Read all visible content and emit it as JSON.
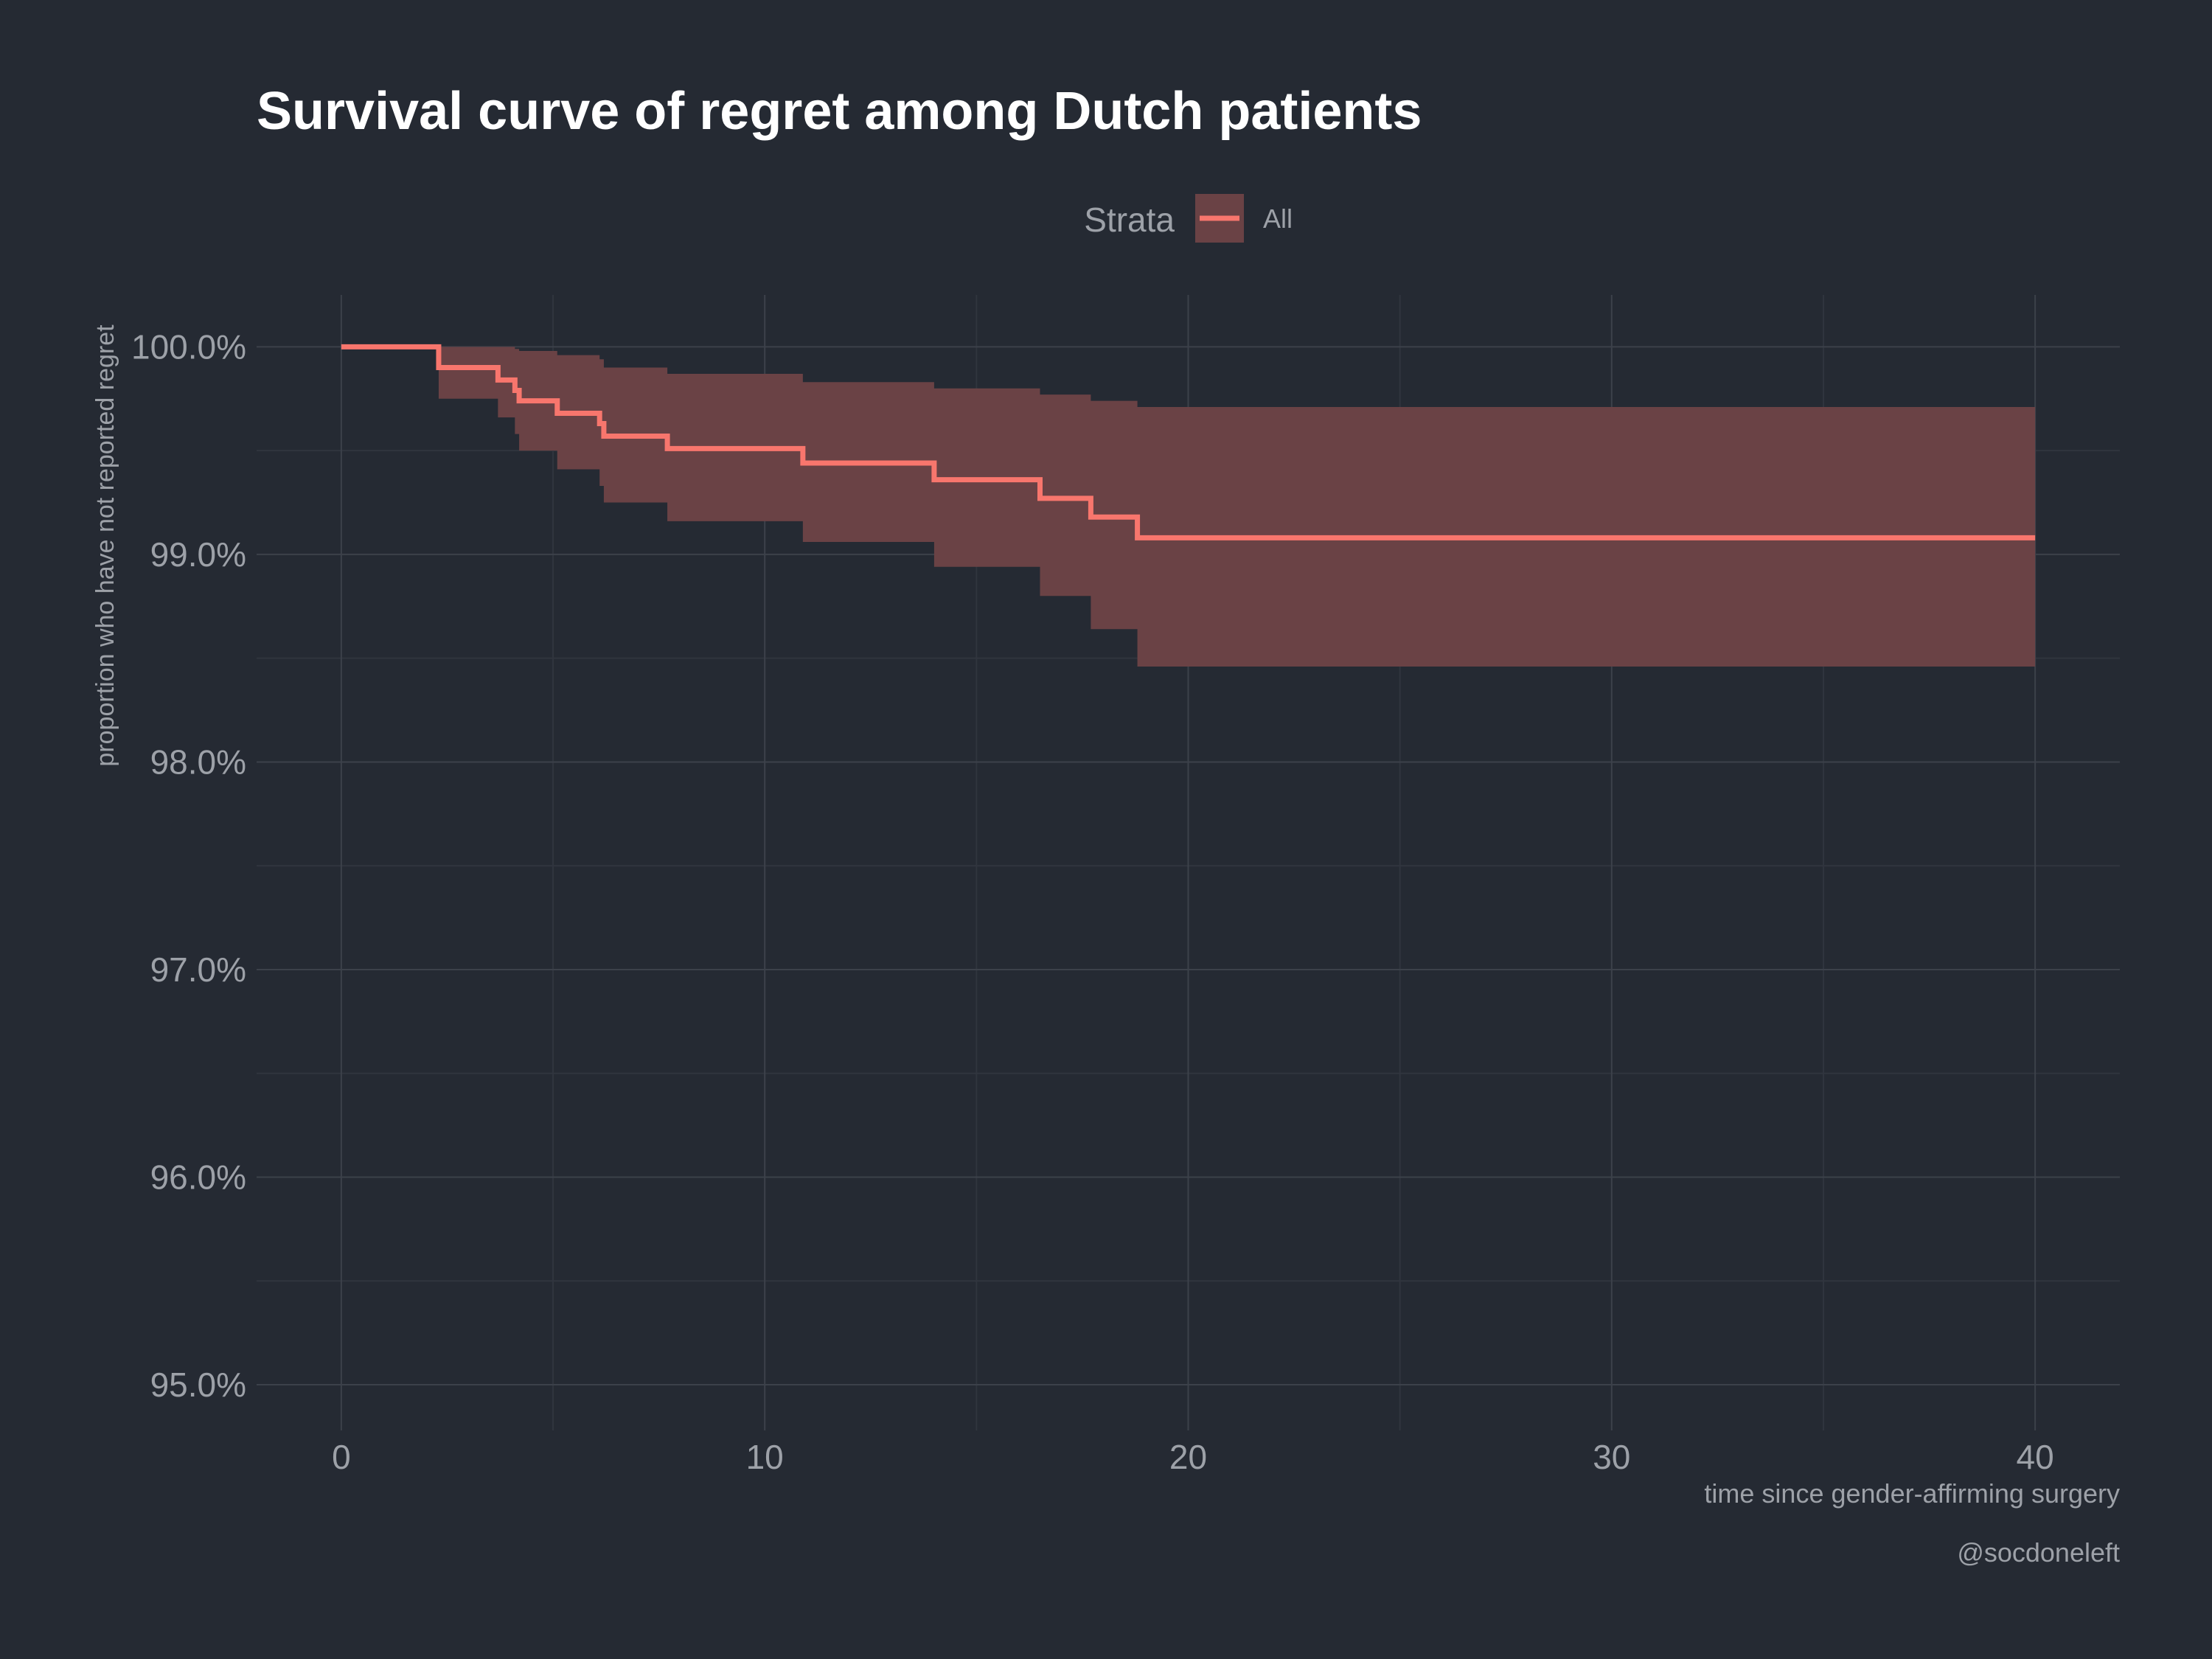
{
  "colors": {
    "background": "#252a33",
    "grid_major": "#3c414a",
    "grid_minor": "#30353e",
    "axis_text": "#9da1a8",
    "title_text": "#ffffff",
    "line": "#f8766d",
    "ribbon": "#6a4245"
  },
  "chart_data": {
    "type": "line",
    "title": "Survival curve of regret among Dutch patients",
    "xlabel": "time since gender-affirming surgery",
    "ylabel": "proportion who have not reported regret",
    "caption": "@socdoneleft",
    "legend": {
      "title": "Strata",
      "position": "top",
      "entries": [
        "All"
      ]
    },
    "grid": true,
    "xlim": [
      -2,
      42
    ],
    "ylim": [
      94.78,
      100.25
    ],
    "xticks": [
      0,
      10,
      20,
      30,
      40
    ],
    "xtick_labels": [
      "0",
      "10",
      "20",
      "30",
      "40"
    ],
    "yticks": [
      95,
      96,
      97,
      98,
      99,
      100
    ],
    "ytick_labels": [
      "95.0%",
      "96.0%",
      "97.0%",
      "98.0%",
      "99.0%",
      "100.0%"
    ],
    "series": [
      {
        "name": "All",
        "step": true,
        "x": [
          0,
          2.3,
          3.7,
          4.1,
          4.2,
          5.1,
          6.1,
          6.2,
          7.7,
          10.9,
          14.0,
          16.5,
          17.7,
          18.8,
          40
        ],
        "y": [
          100.0,
          99.9,
          99.84,
          99.79,
          99.74,
          99.68,
          99.63,
          99.57,
          99.51,
          99.44,
          99.36,
          99.27,
          99.18,
          99.08,
          99.08
        ],
        "lower": [
          100.0,
          99.75,
          99.66,
          99.58,
          99.5,
          99.41,
          99.33,
          99.25,
          99.16,
          99.06,
          98.94,
          98.8,
          98.64,
          98.46,
          98.46
        ],
        "upper": [
          100.0,
          100.0,
          100.0,
          99.99,
          99.98,
          99.96,
          99.94,
          99.9,
          99.87,
          99.83,
          99.8,
          99.77,
          99.74,
          99.71,
          99.71
        ]
      }
    ]
  }
}
